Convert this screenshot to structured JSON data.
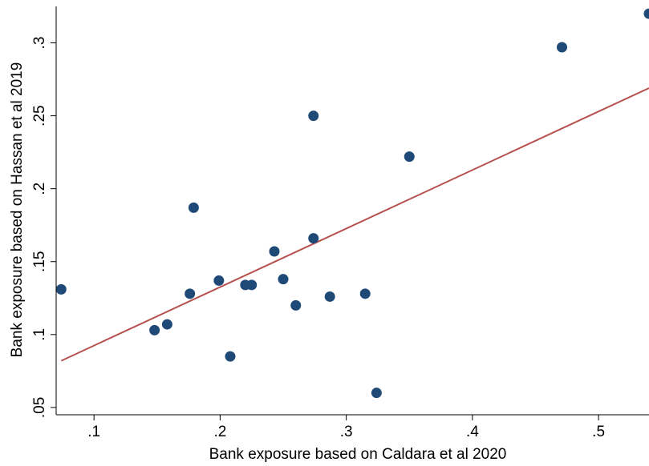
{
  "chart_data": {
    "type": "scatter",
    "xlabel": "Bank exposure based on Caldara et al 2020",
    "ylabel": "Bank exposure based on Hassan et al 2019",
    "xlim": [
      0.07,
      0.54
    ],
    "ylim": [
      0.045,
      0.325
    ],
    "x_ticks": [
      {
        "value": 0.1,
        "label": ".1"
      },
      {
        "value": 0.2,
        "label": ".2"
      },
      {
        "value": 0.3,
        "label": ".3"
      },
      {
        "value": 0.4,
        "label": ".4"
      },
      {
        "value": 0.5,
        "label": ".5"
      }
    ],
    "y_ticks": [
      {
        "value": 0.05,
        "label": ".05"
      },
      {
        "value": 0.1,
        "label": ".1"
      },
      {
        "value": 0.15,
        "label": ".15"
      },
      {
        "value": 0.2,
        "label": ".2"
      },
      {
        "value": 0.25,
        "label": ".25"
      },
      {
        "value": 0.3,
        "label": ".3"
      }
    ],
    "grid": false,
    "legend": "none",
    "points": [
      {
        "x": 0.074,
        "y": 0.131
      },
      {
        "x": 0.148,
        "y": 0.103
      },
      {
        "x": 0.158,
        "y": 0.107
      },
      {
        "x": 0.176,
        "y": 0.128
      },
      {
        "x": 0.179,
        "y": 0.187
      },
      {
        "x": 0.199,
        "y": 0.137
      },
      {
        "x": 0.208,
        "y": 0.085
      },
      {
        "x": 0.22,
        "y": 0.134
      },
      {
        "x": 0.225,
        "y": 0.134
      },
      {
        "x": 0.243,
        "y": 0.157
      },
      {
        "x": 0.25,
        "y": 0.138
      },
      {
        "x": 0.26,
        "y": 0.12
      },
      {
        "x": 0.274,
        "y": 0.25
      },
      {
        "x": 0.274,
        "y": 0.166
      },
      {
        "x": 0.287,
        "y": 0.126
      },
      {
        "x": 0.315,
        "y": 0.128
      },
      {
        "x": 0.324,
        "y": 0.06
      },
      {
        "x": 0.35,
        "y": 0.222
      },
      {
        "x": 0.471,
        "y": 0.297
      },
      {
        "x": 0.54,
        "y": 0.32
      }
    ],
    "fit_line": {
      "x": [
        0.074,
        0.54
      ],
      "y": [
        0.082,
        0.269
      ]
    },
    "colors": {
      "point": "#1f4a78",
      "fit_line": "#b5524e",
      "axis": "#000000"
    }
  }
}
